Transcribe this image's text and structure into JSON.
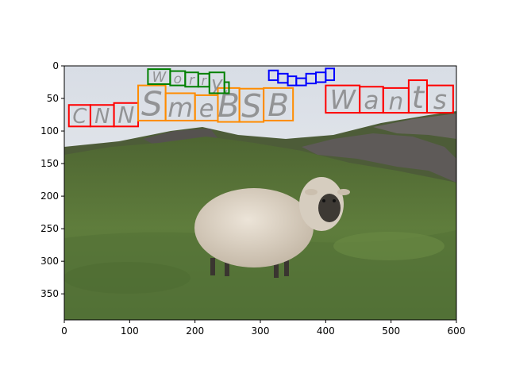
{
  "figure": {
    "x_ticks": [
      "0",
      "100",
      "200",
      "300",
      "400",
      "500",
      "600"
    ],
    "y_ticks": [
      "0",
      "50",
      "100",
      "150",
      "200",
      "250",
      "300",
      "350"
    ],
    "image_extent": {
      "x": [
        0,
        600
      ],
      "y": [
        390,
        0
      ]
    }
  },
  "overlay_words": [
    {
      "text": "CNN",
      "color": "#ff0000",
      "char_boxes": [
        [
          7,
          60,
          40,
          93
        ],
        [
          40,
          60,
          76,
          93
        ],
        [
          76,
          57,
          113,
          93
        ]
      ]
    },
    {
      "text": "SmeBSB",
      "color": "#ff8c00",
      "char_boxes": [
        [
          113,
          30,
          155,
          84
        ],
        [
          155,
          42,
          200,
          84
        ],
        [
          200,
          45,
          235,
          84
        ],
        [
          235,
          34,
          268,
          86
        ],
        [
          268,
          35,
          305,
          86
        ],
        [
          305,
          34,
          350,
          84
        ]
      ]
    },
    {
      "text": "Worry,",
      "color": "#008000",
      "char_boxes": [
        [
          128,
          5,
          162,
          28
        ],
        [
          162,
          8,
          185,
          30
        ],
        [
          185,
          10,
          205,
          32
        ],
        [
          205,
          12,
          222,
          32
        ],
        [
          222,
          10,
          245,
          42
        ],
        [
          245,
          25,
          252,
          42
        ]
      ]
    },
    {
      "text": "Wants",
      "color": "#ff0000",
      "char_boxes": [
        [
          400,
          30,
          452,
          72
        ],
        [
          452,
          32,
          488,
          72
        ],
        [
          488,
          34,
          527,
          72
        ],
        [
          527,
          22,
          555,
          72
        ],
        [
          555,
          30,
          595,
          72
        ]
      ]
    },
    {
      "text": "",
      "color": "#0000ff",
      "char_boxes": [
        [
          313,
          7,
          327,
          22
        ],
        [
          327,
          12,
          342,
          26
        ],
        [
          342,
          16,
          355,
          30
        ],
        [
          355,
          19,
          370,
          30
        ],
        [
          370,
          12,
          385,
          27
        ],
        [
          385,
          10,
          400,
          25
        ],
        [
          400,
          4,
          413,
          22
        ]
      ]
    }
  ],
  "colors": {
    "sky": "#e2e6ec",
    "hill": "#4b5a36",
    "grass": "#5c7a3e",
    "rock": "#5c5856",
    "sheep": "#d9cfc1"
  }
}
